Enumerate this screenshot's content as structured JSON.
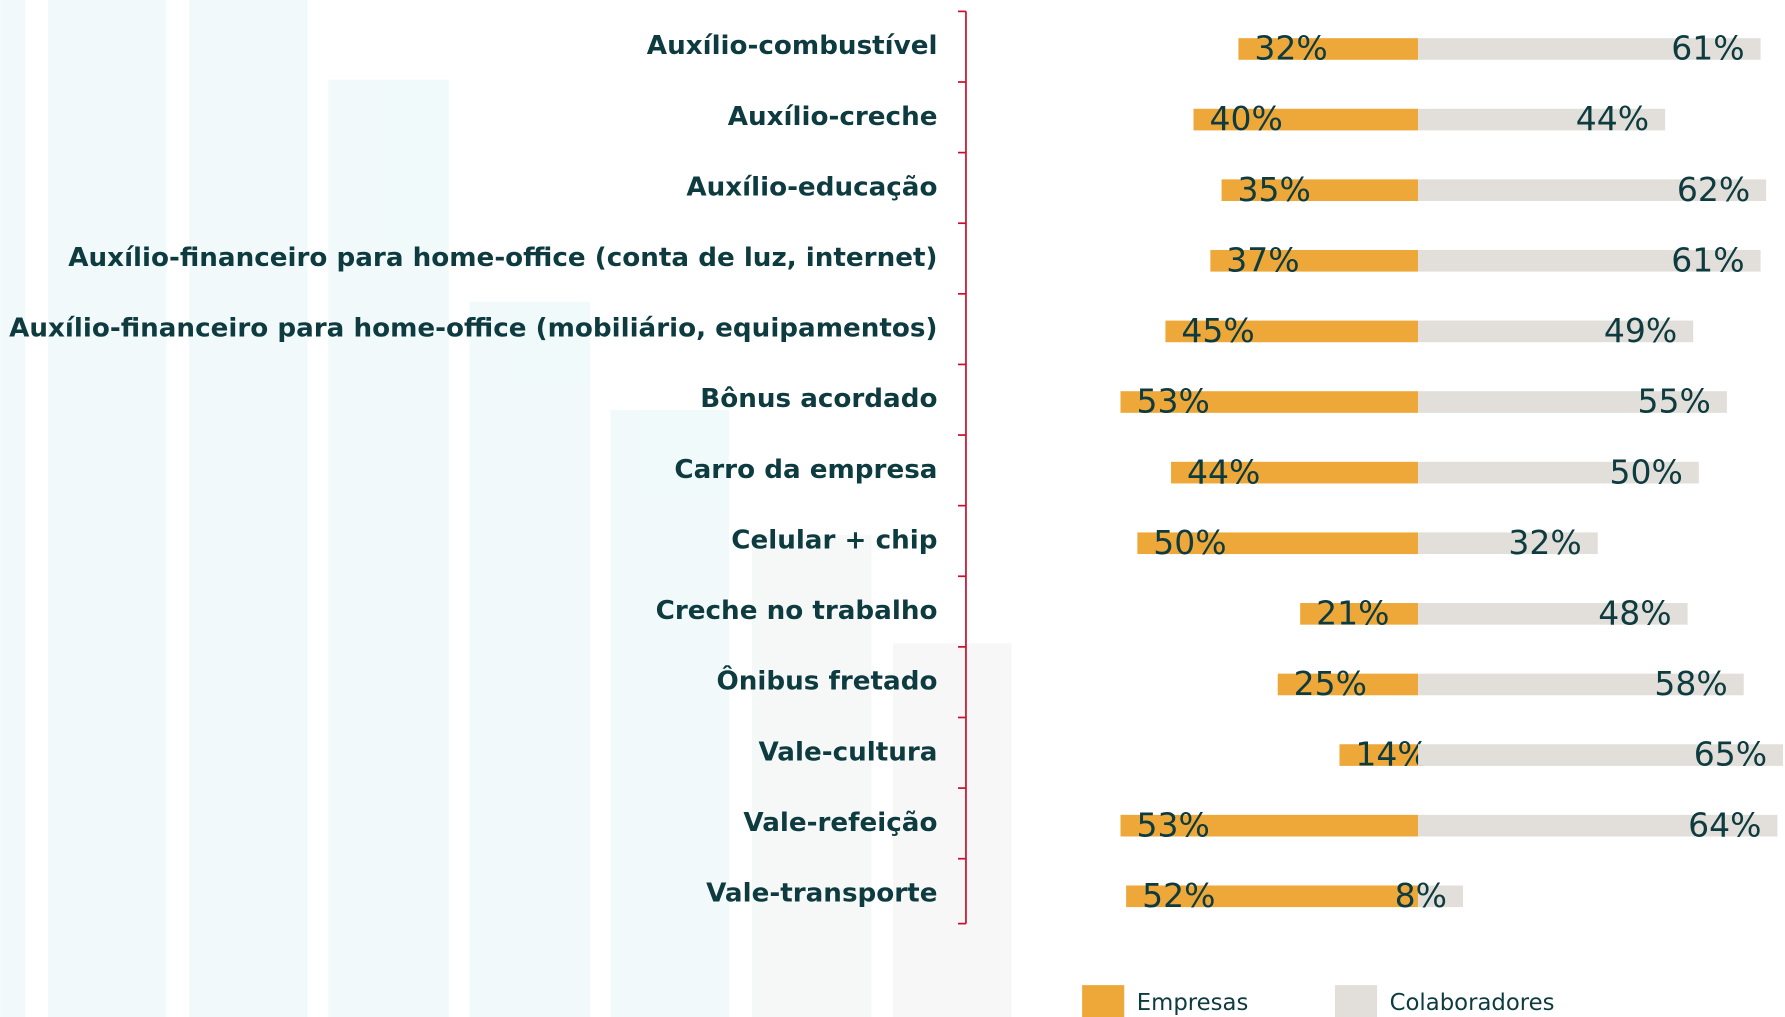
{
  "chart_data": {
    "type": "bar",
    "categories": [
      "Auxílio-combustível",
      "Auxílio-creche",
      "Auxílio-educação",
      "Auxílio-financeiro para home-office (conta de luz, internet)",
      "Auxílio-financeiro para home-office (mobiliário, equipamentos)",
      "Bônus acordado",
      "Carro da empresa",
      "Celular + chip",
      "Creche no trabalho",
      "Ônibus fretado",
      "Vale-cultura",
      "Vale-refeição",
      "Vale-transporte"
    ],
    "series": [
      {
        "name": "Empresas",
        "color": "#eea83a",
        "values": [
          32,
          40,
          35,
          37,
          45,
          53,
          44,
          50,
          21,
          25,
          14,
          53,
          52
        ],
        "value_labels": [
          "32%",
          "40%",
          "35%",
          "37%",
          "45%",
          "53%",
          "44%",
          "50%",
          "21%",
          "25%",
          "14%",
          "53%",
          "52%"
        ]
      },
      {
        "name": "Colaboradores",
        "color": "#e2dfda",
        "values": [
          61,
          44,
          62,
          61,
          49,
          55,
          50,
          32,
          48,
          58,
          65,
          64,
          8
        ],
        "value_labels": [
          "61%",
          "44%",
          "62%",
          "61%",
          "49%",
          "55%",
          "50%",
          "32%",
          "48%",
          "58%",
          "65%",
          "64%",
          "8%"
        ]
      }
    ]
  }
}
